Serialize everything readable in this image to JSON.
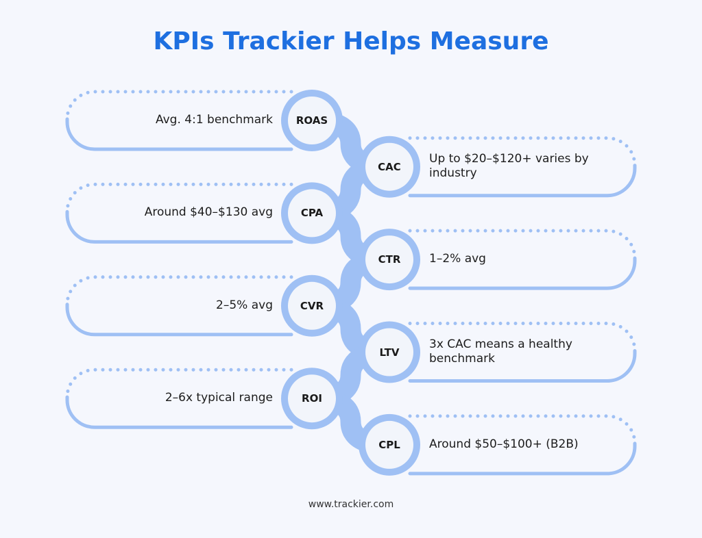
{
  "title": "KPIs Trackier Helps Measure",
  "footer": "www.trackier.com",
  "colors": {
    "accent": "#1e6fe0",
    "track": "#9fc0f4",
    "node": "#f2f5fb"
  },
  "kpis": [
    {
      "label": "ROAS",
      "side": "left",
      "desc": "Avg. 4:1 benchmark"
    },
    {
      "label": "CAC",
      "side": "right",
      "desc": "Up to $20–$120+ varies by industry"
    },
    {
      "label": "CPA",
      "side": "left",
      "desc": "Around $40–$130 avg"
    },
    {
      "label": "CTR",
      "side": "right",
      "desc": "1–2% avg"
    },
    {
      "label": "CVR",
      "side": "left",
      "desc": "2–5% avg"
    },
    {
      "label": "LTV",
      "side": "right",
      "desc": "3x CAC means a healthy benchmark"
    },
    {
      "label": "ROI",
      "side": "left",
      "desc": "2–6x typical range"
    },
    {
      "label": "CPL",
      "side": "right",
      "desc": "Around $50–$100+ (B2B)"
    }
  ]
}
